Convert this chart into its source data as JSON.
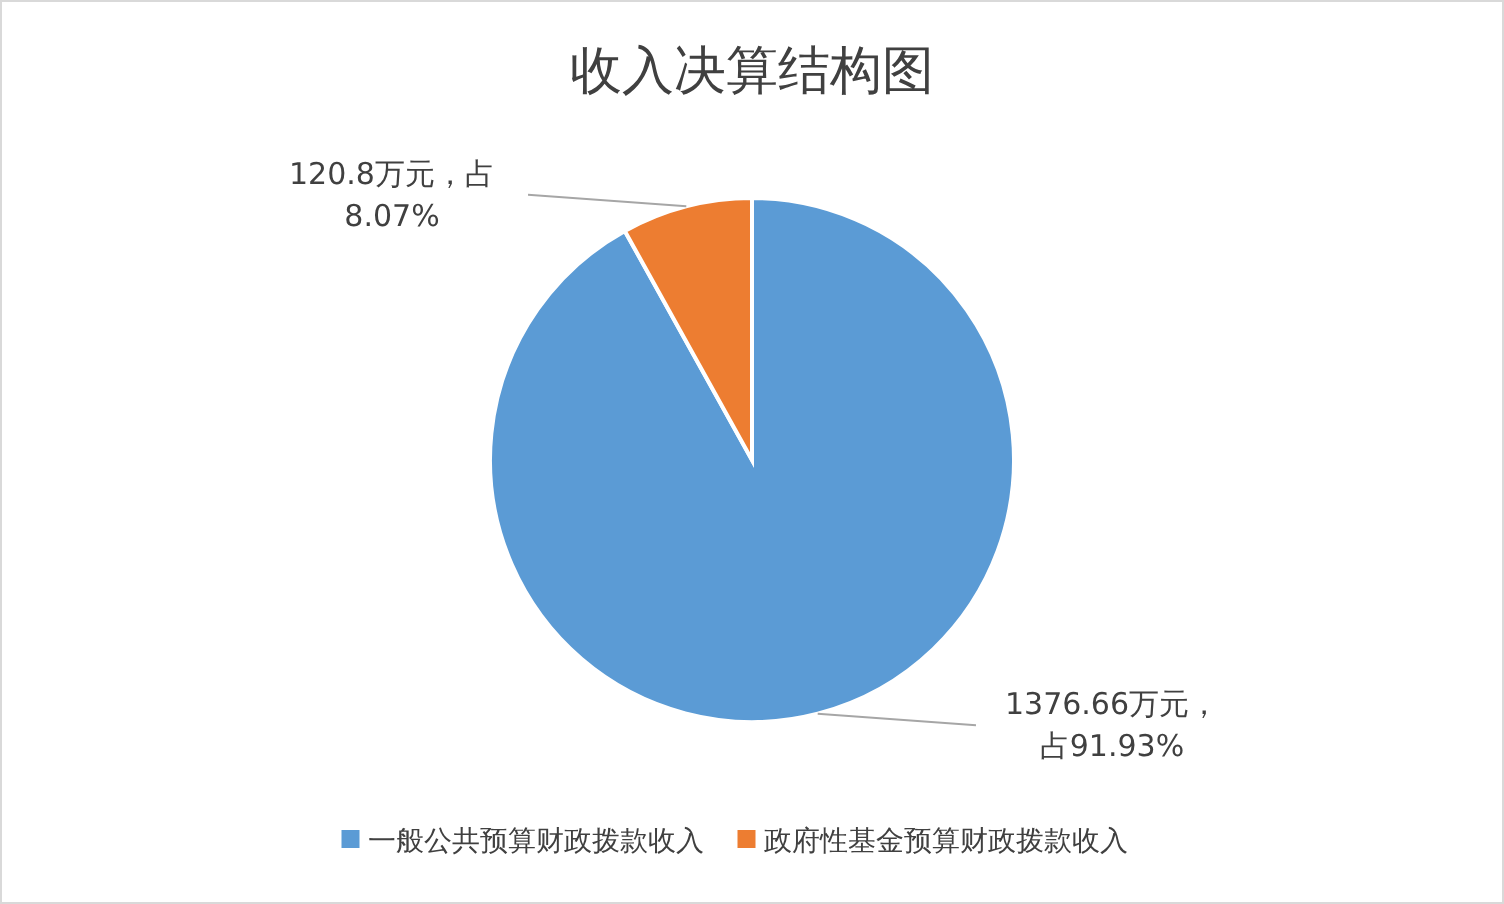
{
  "chart_data": {
    "type": "pie",
    "title": "收入决算结构图",
    "categories": [
      "一般公共预算财政拨款收入",
      "政府性基金预算财政拨款收入"
    ],
    "values": [
      1376.66,
      120.8
    ],
    "colors": [
      "#5b9bd5",
      "#ed7d31"
    ],
    "value_labels": [
      "1376.66万元，占91.93%",
      "120.8万元，占8.07%"
    ],
    "legend": "bottom"
  }
}
